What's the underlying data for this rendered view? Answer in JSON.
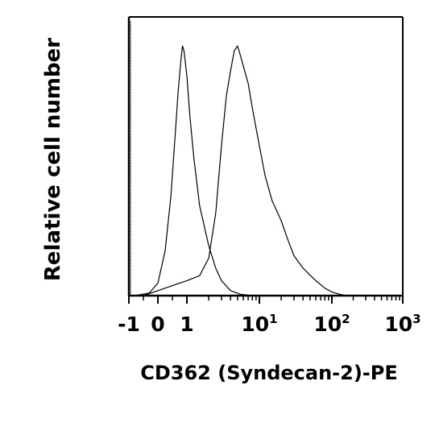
{
  "chart_data": {
    "type": "line",
    "title": "",
    "xlabel": "CD362 (Syndecan-2)-PE",
    "ylabel": "Relative cell number",
    "x_scale": "biexponential",
    "x_tick_labels": [
      {
        "value": -1,
        "base": "-1",
        "exp": ""
      },
      {
        "value": 0,
        "base": "0",
        "exp": ""
      },
      {
        "value": 1,
        "base": "1",
        "exp": ""
      },
      {
        "value": 10,
        "base": "10",
        "exp": "1"
      },
      {
        "value": 100,
        "base": "10",
        "exp": "2"
      },
      {
        "value": 1000,
        "base": "10",
        "exp": "3"
      }
    ],
    "grid": false,
    "legend": "none",
    "series": [
      {
        "x": [
          -0.8,
          -0.3,
          0.0,
          0.25,
          0.45,
          0.6,
          0.7,
          0.8,
          0.85,
          0.9,
          1.0,
          1.1,
          1.25,
          1.5,
          2.0,
          2.5,
          3.0,
          4.0,
          5.5,
          8.0
        ],
        "y": [
          0,
          0.01,
          0.05,
          0.18,
          0.4,
          0.65,
          0.82,
          0.95,
          1.0,
          0.98,
          0.88,
          0.72,
          0.55,
          0.36,
          0.2,
          0.11,
          0.06,
          0.02,
          0.005,
          0
        ]
      },
      {
        "x": [
          -0.5,
          0.0,
          0.5,
          1.0,
          1.5,
          2.0,
          2.5,
          3.0,
          3.5,
          4.0,
          4.5,
          5.0,
          5.5,
          6.0,
          7.0,
          8.0,
          10,
          12,
          15,
          20,
          25,
          30,
          40,
          60,
          80,
          100,
          130,
          160
        ],
        "y": [
          0,
          0.02,
          0.04,
          0.06,
          0.08,
          0.15,
          0.33,
          0.6,
          0.8,
          0.9,
          0.98,
          1.0,
          0.96,
          0.92,
          0.85,
          0.75,
          0.6,
          0.48,
          0.38,
          0.3,
          0.22,
          0.16,
          0.11,
          0.06,
          0.03,
          0.015,
          0.005,
          0
        ]
      }
    ]
  }
}
